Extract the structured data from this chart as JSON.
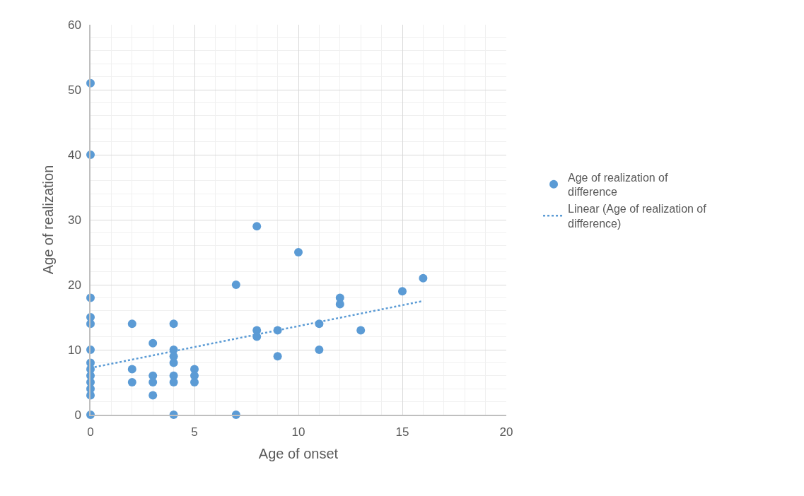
{
  "chart_data": {
    "type": "scatter",
    "xlabel": "Age of onset",
    "ylabel": "Age of realization",
    "xlim": [
      0,
      20
    ],
    "xticks": [
      0,
      5,
      10,
      15,
      20
    ],
    "ylim": [
      0,
      60
    ],
    "yticks": [
      0,
      10,
      20,
      30,
      40,
      50,
      60
    ],
    "grid": true,
    "legend": "right",
    "marker": "circle",
    "series": [
      {
        "name": "Age of realization of difference",
        "color": "#5b9bd5",
        "x": [
          0,
          0,
          0,
          0,
          0,
          0,
          0,
          0,
          0,
          0,
          0,
          0,
          0,
          2,
          2,
          2,
          3,
          3,
          3,
          3,
          4,
          4,
          4,
          4,
          4,
          4,
          4,
          5,
          5,
          5,
          7,
          7,
          8,
          8,
          8,
          9,
          9,
          10,
          11,
          11,
          12,
          12,
          13,
          15,
          16
        ],
        "values": [
          51,
          40,
          18,
          15,
          14,
          10,
          8,
          7,
          6,
          5,
          4,
          3,
          0,
          14,
          7,
          5,
          11,
          6,
          5,
          3,
          14,
          10,
          9,
          8,
          6,
          5,
          0,
          7,
          6,
          5,
          20,
          0,
          29,
          13,
          12,
          13,
          9,
          25,
          14,
          10,
          18,
          17,
          13,
          19,
          21
        ]
      },
      {
        "name": "Linear (Age of realization of difference)",
        "color": "#5b9bd5",
        "type": "line",
        "line_style": "dotted",
        "marker": "none",
        "x": [
          0,
          16
        ],
        "values": [
          7.2,
          17.5
        ]
      }
    ]
  }
}
